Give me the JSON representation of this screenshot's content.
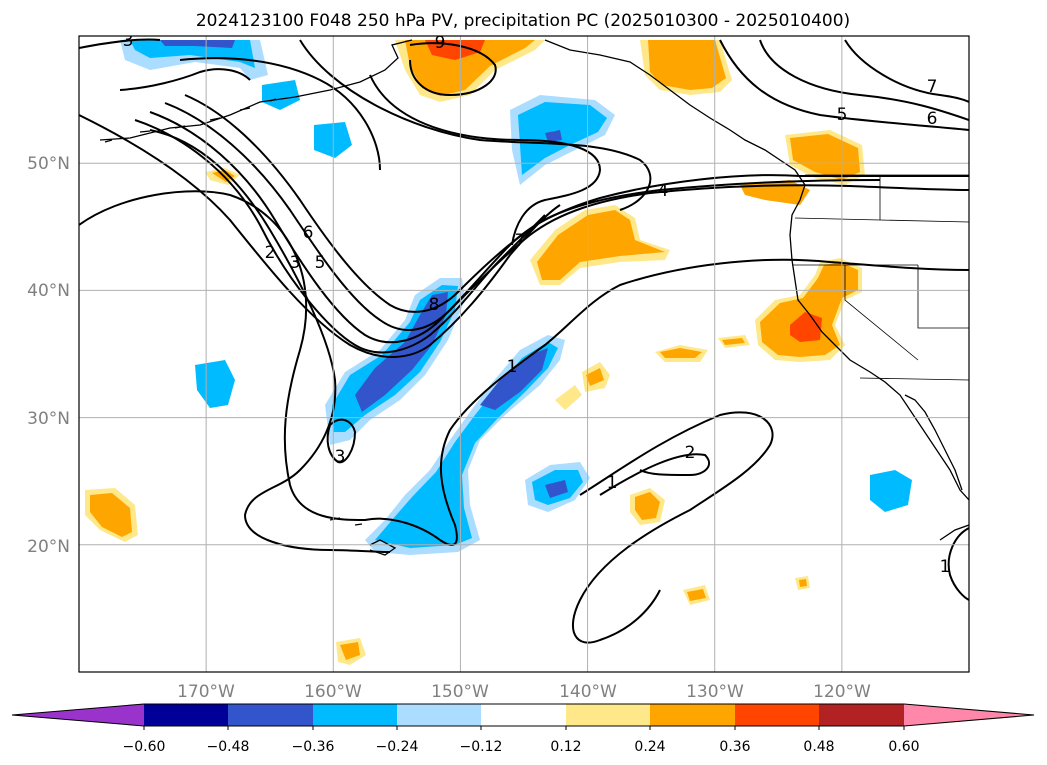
{
  "title": "2024123100 F048 250 hPa PV, precipitation PC (2025010300 - 2025010400)",
  "map_axes": {
    "lon_range": [
      -180,
      -110
    ],
    "lat_range": [
      10,
      60
    ],
    "lon_ticks": [
      -170,
      -160,
      -150,
      -140,
      -130,
      -120
    ],
    "lat_ticks": [
      20,
      30,
      40,
      50
    ],
    "lon_tick_labels": [
      "170°W",
      "160°W",
      "150°W",
      "140°W",
      "130°W",
      "120°W"
    ],
    "lat_tick_labels": [
      "20°N",
      "30°N",
      "40°N",
      "50°N"
    ],
    "grid": true,
    "tick_label_color": "#808080"
  },
  "colorbar": {
    "orientation": "horizontal",
    "extend": "both",
    "tick_labels": [
      "−0.60",
      "−0.48",
      "−0.36",
      "−0.24",
      "−0.12",
      "0.12",
      "0.24",
      "0.36",
      "0.48",
      "0.60"
    ],
    "colors": [
      "#9933cc",
      "#000099",
      "#3355cc",
      "#00bbff",
      "#aaddff",
      "#ffffff",
      "#ffe88a",
      "#ffa500",
      "#ff4500",
      "#b22222",
      "#ff88aa"
    ]
  },
  "pv_contour_labels": [
    "1",
    "1",
    "1",
    "2",
    "2",
    "3",
    "3",
    "3",
    "4",
    "5",
    "5",
    "6",
    "6",
    "7",
    "7",
    "8",
    "9"
  ]
}
